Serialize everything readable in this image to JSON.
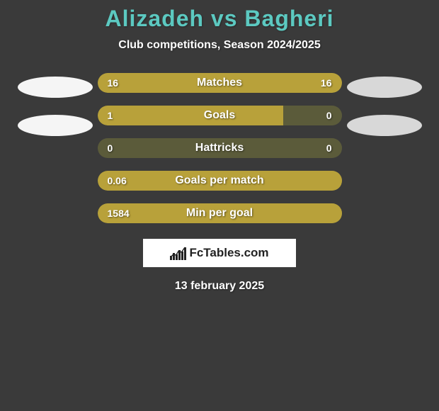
{
  "background_color": "#3a3a3a",
  "title": {
    "text": "Alizadeh vs Bagheri",
    "color": "#5cc9c1",
    "fontsize": 32
  },
  "subtitle": {
    "text": "Club competitions, Season 2024/2025",
    "color": "#ffffff",
    "fontsize": 16
  },
  "avatars": {
    "left_color": "#f5f5f5",
    "right_color": "#d8d8d8"
  },
  "bars": {
    "track_color": "#5b5b3a",
    "fill_color": "#b8a13a",
    "label_color": "#ffffff",
    "value_color": "#ffffff",
    "items": [
      {
        "label": "Matches",
        "left_value": "16",
        "right_value": "16",
        "left_pct": 50,
        "right_pct": 50
      },
      {
        "label": "Goals",
        "left_value": "1",
        "right_value": "0",
        "left_pct": 76,
        "right_pct": 0
      },
      {
        "label": "Hattricks",
        "left_value": "0",
        "right_value": "0",
        "left_pct": 0,
        "right_pct": 0
      },
      {
        "label": "Goals per match",
        "left_value": "0.06",
        "right_value": "",
        "left_pct": 100,
        "right_pct": 0
      },
      {
        "label": "Min per goal",
        "left_value": "1584",
        "right_value": "",
        "left_pct": 100,
        "right_pct": 0
      }
    ]
  },
  "logo": {
    "text": "FcTables.com",
    "background": "#ffffff",
    "text_color": "#222222"
  },
  "date": {
    "text": "13 february 2025",
    "color": "#ffffff"
  }
}
